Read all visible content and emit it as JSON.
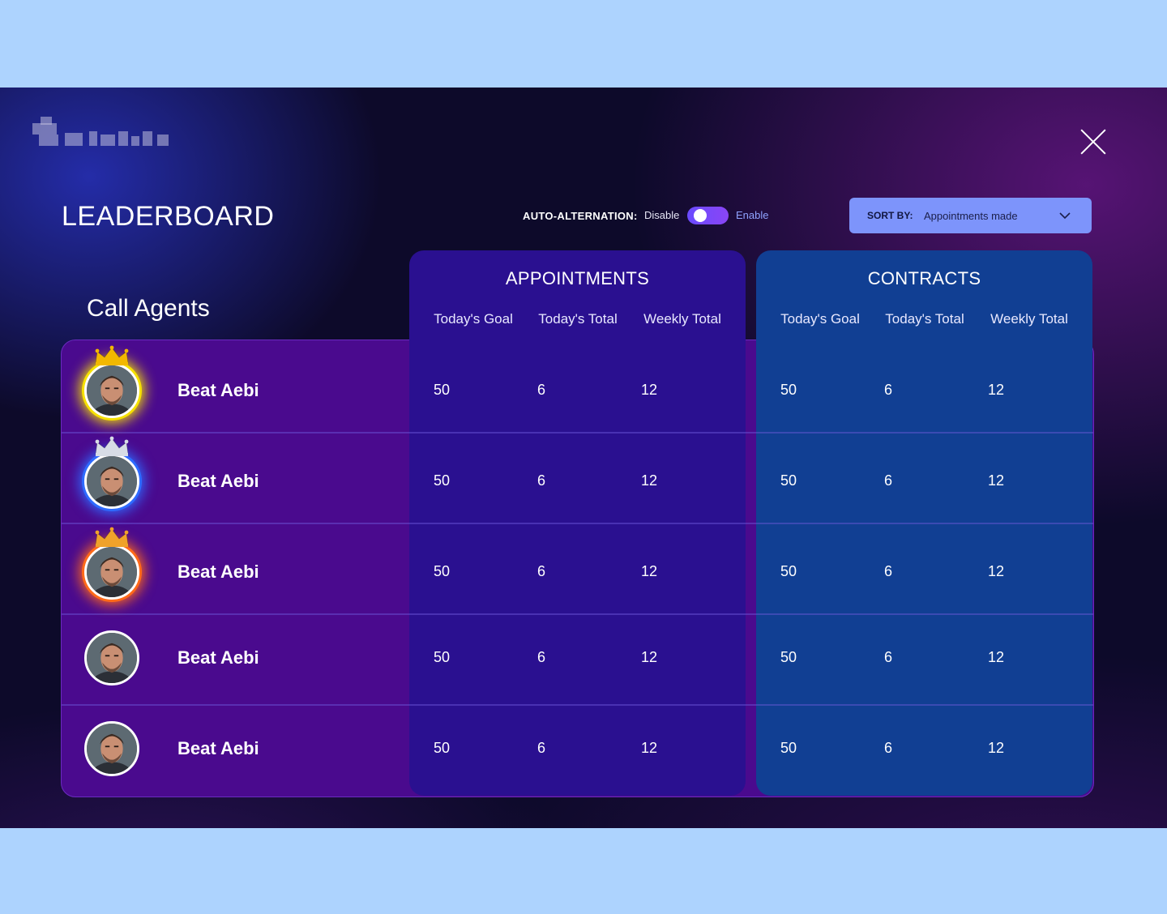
{
  "header": {
    "title": "LEADERBOARD",
    "auto_alternation_label": "AUTO-ALTERNATION:",
    "disable_label": "Disable",
    "enable_label": "Enable",
    "toggle_state": "disable",
    "sort_key": "SORT BY:",
    "sort_value": "Appointments made"
  },
  "agents_label": "Call Agents",
  "groups": [
    {
      "title": "APPOINTMENTS",
      "columns": [
        "Today's Goal",
        "Today's Total",
        "Weekly Total"
      ]
    },
    {
      "title": "CONTRACTS",
      "columns": [
        "Today's Goal",
        "Today's Total",
        "Weekly Total"
      ]
    }
  ],
  "rows": [
    {
      "name": "Beat Aebi",
      "rank_glow": "#f6e100",
      "crown": "gold",
      "appointments": [
        "50",
        "6",
        "12"
      ],
      "contracts": [
        "50",
        "6",
        "12"
      ]
    },
    {
      "name": "Beat Aebi",
      "rank_glow": "#2f6bff",
      "crown": "silver",
      "appointments": [
        "50",
        "6",
        "12"
      ],
      "contracts": [
        "50",
        "6",
        "12"
      ]
    },
    {
      "name": "Beat Aebi",
      "rank_glow": "#ff6a1a",
      "crown": "bronze",
      "appointments": [
        "50",
        "6",
        "12"
      ],
      "contracts": [
        "50",
        "6",
        "12"
      ]
    },
    {
      "name": "Beat Aebi",
      "rank_glow": "",
      "crown": "",
      "appointments": [
        "50",
        "6",
        "12"
      ],
      "contracts": [
        "50",
        "6",
        "12"
      ]
    },
    {
      "name": "Beat Aebi",
      "rank_glow": "",
      "crown": "",
      "appointments": [
        "50",
        "6",
        "12"
      ],
      "contracts": [
        "50",
        "6",
        "12"
      ]
    }
  ],
  "colors": {
    "background": "#0d0a2a",
    "outer": "#add3fe",
    "rows_panel": "#4a0a8e",
    "appointments_block": "#2a1090",
    "contracts_block": "#113f93",
    "sort_button": "#7d94fb",
    "toggle": "#6a4bff",
    "enable_text": "#8fa3ff"
  },
  "icons": {
    "close": "close-icon",
    "sort": "chevron-down-icon",
    "crown": "crown-icon",
    "logo": "brand-logo-pixelated"
  }
}
